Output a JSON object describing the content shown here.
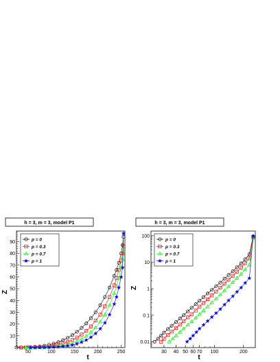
{
  "chart_data": [
    {
      "type": "scatter",
      "title": "h = 3, m = 3, model P1",
      "xlabel": "t",
      "ylabel": "Z",
      "xscale": "linear",
      "yscale": "linear",
      "xlim": [
        25,
        258
      ],
      "ylim": [
        0,
        99
      ],
      "xticks": [
        50,
        100,
        150,
        200,
        250
      ],
      "yticks": [
        10,
        20,
        30,
        40,
        50,
        60,
        70,
        80,
        90
      ],
      "legend_position": "top-left",
      "grid": false,
      "series": [
        {
          "name": "p = 0",
          "marker": "circle",
          "color": "#000000",
          "x": [
            25,
            35,
            45,
            55,
            65,
            75,
            85,
            95,
            105,
            115,
            125,
            135,
            145,
            155,
            165,
            175,
            185,
            195,
            205,
            215,
            225,
            235,
            240,
            245,
            250,
            253,
            255
          ],
          "y": [
            0.01,
            0.05,
            0.15,
            0.3,
            0.6,
            1.0,
            1.6,
            2.4,
            3.4,
            4.7,
            6.3,
            8.3,
            10.6,
            13.4,
            16.7,
            20.5,
            25,
            30,
            36,
            43,
            51,
            61,
            66,
            72,
            80,
            87,
            94
          ]
        },
        {
          "name": "p = 0.3",
          "marker": "square",
          "color": "#ff0000",
          "x": [
            35,
            45,
            55,
            65,
            75,
            85,
            95,
            105,
            115,
            125,
            135,
            145,
            155,
            165,
            175,
            185,
            195,
            205,
            215,
            225,
            235,
            240,
            245,
            250,
            253,
            255
          ],
          "y": [
            0.02,
            0.05,
            0.1,
            0.2,
            0.4,
            0.7,
            1.1,
            1.7,
            2.5,
            3.5,
            4.8,
            6.5,
            8.6,
            11.1,
            14.2,
            18,
            23,
            28,
            35,
            43,
            53,
            59,
            66,
            74,
            80,
            86
          ]
        },
        {
          "name": "p = 0.7",
          "marker": "triangle",
          "color": "#00ff00",
          "x": [
            45,
            55,
            65,
            75,
            85,
            95,
            105,
            115,
            125,
            135,
            145,
            155,
            165,
            175,
            185,
            195,
            205,
            215,
            225,
            235,
            240,
            245,
            250,
            253,
            255
          ],
          "y": [
            0.01,
            0.03,
            0.06,
            0.12,
            0.25,
            0.45,
            0.75,
            1.2,
            1.8,
            2.7,
            3.8,
            5.3,
            7.3,
            9.8,
            13,
            17,
            22,
            28,
            36,
            46,
            52,
            59,
            68,
            75,
            82
          ]
        },
        {
          "name": "p = 1",
          "marker": "star",
          "color": "#0000ff",
          "x": [
            55,
            65,
            75,
            85,
            95,
            105,
            115,
            125,
            135,
            145,
            155,
            165,
            175,
            185,
            195,
            205,
            215,
            225,
            235,
            240,
            245,
            250,
            253,
            255
          ],
          "y": [
            0.01,
            0.02,
            0.05,
            0.1,
            0.2,
            0.35,
            0.6,
            1.0,
            1.5,
            2.2,
            3.2,
            4.6,
            6.4,
            8.8,
            12,
            16,
            21,
            28,
            37,
            43,
            51,
            60,
            68,
            97
          ]
        }
      ]
    },
    {
      "type": "scatter",
      "title": "h = 3, m = 3, model P1",
      "xlabel": "t",
      "ylabel": "Z",
      "xscale": "log",
      "yscale": "log",
      "xlim": [
        22,
        265
      ],
      "ylim": [
        0.006,
        150
      ],
      "xticks": [
        30,
        40,
        50,
        60,
        70,
        100,
        200
      ],
      "yticks": [
        0.01,
        0.1,
        1,
        10,
        100
      ],
      "ytick_labels": [
        "0.01",
        "0.1",
        "1",
        "10",
        "100"
      ],
      "legend_position": "top-left",
      "grid": false,
      "series": [
        {
          "name": "p = 0",
          "marker": "circle",
          "color": "#000000",
          "x": [
            24,
            26,
            28,
            30,
            33,
            36,
            40,
            44,
            48,
            53,
            58,
            64,
            70,
            77,
            85,
            94,
            104,
            115,
            127,
            140,
            155,
            171,
            189,
            208,
            230,
            252
          ],
          "y": [
            0.01,
            0.013,
            0.017,
            0.022,
            0.03,
            0.04,
            0.055,
            0.075,
            0.1,
            0.14,
            0.19,
            0.26,
            0.35,
            0.48,
            0.66,
            0.9,
            1.25,
            1.7,
            2.4,
            3.3,
            4.6,
            6.4,
            9,
            13,
            20,
            94
          ]
        },
        {
          "name": "p = 0.3",
          "marker": "square",
          "color": "#ff0000",
          "x": [
            28,
            30,
            33,
            36,
            40,
            44,
            48,
            53,
            58,
            64,
            70,
            77,
            85,
            94,
            104,
            115,
            127,
            140,
            155,
            171,
            189,
            208,
            230,
            252
          ],
          "y": [
            0.01,
            0.013,
            0.018,
            0.024,
            0.033,
            0.045,
            0.06,
            0.083,
            0.11,
            0.15,
            0.21,
            0.29,
            0.4,
            0.56,
            0.78,
            1.1,
            1.55,
            2.2,
            3.1,
            4.4,
            6.3,
            9.2,
            14,
            86
          ]
        },
        {
          "name": "p = 0.7",
          "marker": "triangle",
          "color": "#00ff00",
          "x": [
            34,
            37,
            40,
            44,
            48,
            53,
            58,
            64,
            70,
            77,
            85,
            94,
            104,
            115,
            127,
            140,
            155,
            171,
            189,
            208,
            230,
            252
          ],
          "y": [
            0.01,
            0.013,
            0.017,
            0.023,
            0.031,
            0.043,
            0.058,
            0.08,
            0.11,
            0.15,
            0.21,
            0.3,
            0.42,
            0.6,
            0.85,
            1.2,
            1.75,
            2.5,
            3.6,
            5.3,
            8,
            82
          ]
        },
        {
          "name": "p = 1",
          "marker": "star",
          "color": "#0000ff",
          "x": [
            52,
            56,
            60,
            65,
            70,
            77,
            85,
            94,
            104,
            115,
            127,
            140,
            155,
            171,
            189,
            208,
            230,
            252
          ],
          "y": [
            0.01,
            0.013,
            0.017,
            0.023,
            0.031,
            0.043,
            0.06,
            0.085,
            0.12,
            0.17,
            0.25,
            0.36,
            0.52,
            0.76,
            1.1,
            1.65,
            2.5,
            97
          ]
        }
      ]
    }
  ]
}
